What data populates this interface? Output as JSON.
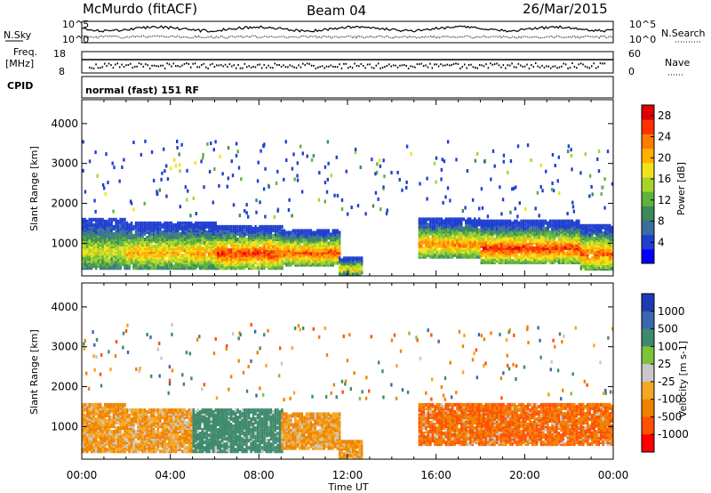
{
  "header": {
    "station": "McMurdo (fitACF)",
    "beam": "Beam 04",
    "date": "26/Mar/2015",
    "program": "normal (fast) 151 RF"
  },
  "strip": {
    "nsky_label": "N.Sky",
    "nsearch_label": "N.Search",
    "freq_label_1": "Freq.",
    "freq_label_2": "[MHz]",
    "cpid_label": "CPID",
    "nave_label": "Nave",
    "noise_tick_hi": "10^5",
    "noise_tick_lo": "10^0",
    "freq_tick_hi": "18",
    "freq_tick_lo": "8",
    "nave_tick_hi": "60",
    "nave_tick_lo": "0"
  },
  "colors": {
    "power": [
      "#0000ff",
      "#1f3fd0",
      "#3a6ea0",
      "#3c8a5a",
      "#5fb33c",
      "#a6d42a",
      "#f2e21a",
      "#ffb000",
      "#ff7a00",
      "#ff3000",
      "#e00000"
    ],
    "velocity": [
      "#1c3cb4",
      "#3a68b0",
      "#3e8a6c",
      "#7cc33a",
      "#c8c8c8",
      "#f5a623",
      "#f08200",
      "#ff5000",
      "#ff0000"
    ]
  },
  "chart_data": [
    {
      "type": "heatmap",
      "ylabel": "Slant Range [km]",
      "colorbar_label": "Power [dB]",
      "colorbar_ticks": [
        4,
        8,
        12,
        16,
        20,
        24,
        28
      ],
      "colorbar_range": [
        0,
        30
      ],
      "ylim": [
        180,
        4600
      ],
      "yticks": [
        1000,
        2000,
        3000,
        4000
      ],
      "xlim_hours": [
        0,
        24
      ],
      "xticks": [
        "00:00",
        "04:00",
        "08:00",
        "12:00",
        "16:00",
        "20:00",
        "00:00"
      ],
      "scatter_bands": [
        {
          "t0": 0.0,
          "t1": 2.0,
          "lo": 420,
          "hi": 1650,
          "peak": 18
        },
        {
          "t0": 2.0,
          "t1": 6.0,
          "lo": 420,
          "hi": 1550,
          "peak": 22
        },
        {
          "t0": 6.0,
          "t1": 9.0,
          "lo": 420,
          "hi": 1500,
          "peak": 28
        },
        {
          "t0": 9.0,
          "t1": 11.6,
          "lo": 500,
          "hi": 1400,
          "peak": 26
        },
        {
          "t0": 11.6,
          "t1": 12.6,
          "lo": 260,
          "hi": 700,
          "peak": 20
        },
        {
          "t0": 15.2,
          "t1": 18.0,
          "lo": 700,
          "hi": 1650,
          "peak": 24
        },
        {
          "t0": 18.0,
          "t1": 22.5,
          "lo": 560,
          "hi": 1600,
          "peak": 28
        },
        {
          "t0": 22.5,
          "t1": 24.0,
          "lo": 400,
          "hi": 1500,
          "peak": 26
        }
      ]
    },
    {
      "type": "heatmap",
      "ylabel": "Slant Range [km]",
      "colorbar_label": "Velocity [m s-1]",
      "colorbar_ticks": [
        1000,
        500,
        100,
        25,
        -25,
        -100,
        -500,
        -1000
      ],
      "ylim": [
        180,
        4600
      ],
      "yticks": [
        1000,
        2000,
        3000,
        4000
      ],
      "xlabel": "Time UT",
      "xlim_hours": [
        0,
        24
      ],
      "xticks": [
        "00:00",
        "04:00",
        "08:00",
        "12:00",
        "16:00",
        "20:00",
        "00:00"
      ],
      "scatter_bands": [
        {
          "t0": 0.0,
          "t1": 2.0,
          "lo": 420,
          "hi": 1600,
          "vel": -100
        },
        {
          "t0": 2.0,
          "t1": 5.0,
          "lo": 420,
          "hi": 1500,
          "vel": -100
        },
        {
          "t0": 5.0,
          "t1": 9.0,
          "lo": 420,
          "hi": 1500,
          "vel": 200
        },
        {
          "t0": 9.0,
          "t1": 11.6,
          "lo": 500,
          "hi": 1400,
          "vel": -100
        },
        {
          "t0": 11.6,
          "t1": 12.6,
          "lo": 260,
          "hi": 700,
          "vel": -100
        },
        {
          "t0": 15.2,
          "t1": 24.0,
          "lo": 600,
          "hi": 1600,
          "vel": -300
        }
      ]
    }
  ]
}
